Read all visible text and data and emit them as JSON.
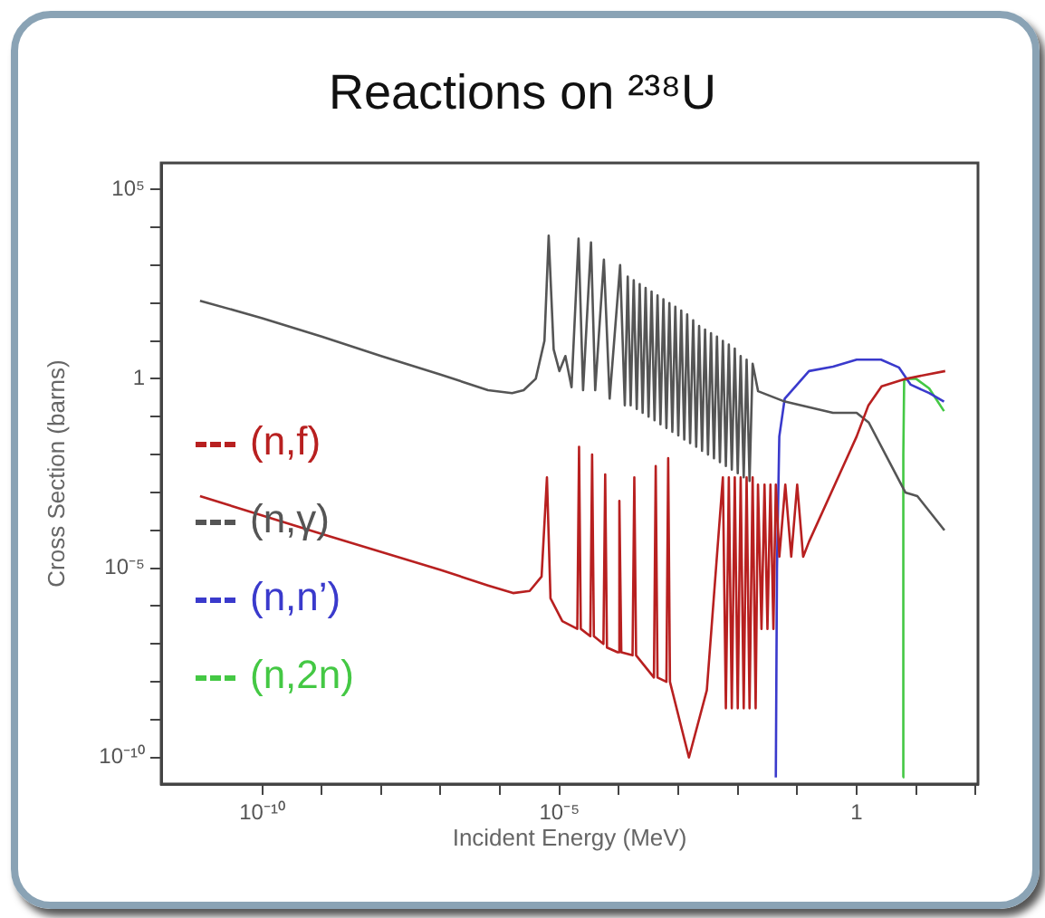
{
  "chart_data": {
    "type": "line",
    "title": "Reactions on ²³⁸U",
    "xlabel": "Incident Energy (MeV)",
    "ylabel": "Cross Section (barns)",
    "log": "xy",
    "grid": false,
    "legend": "left",
    "marker": "none",
    "line_style": "solid",
    "xlim": [
      2e-12,
      110
    ],
    "ylim": [
      2e-11,
      500000
    ],
    "xticks": [
      {
        "value": 1e-10,
        "label": "10⁻¹⁰"
      },
      {
        "value": 1e-09,
        "label": null
      },
      {
        "value": 1e-08,
        "label": null
      },
      {
        "value": 1e-07,
        "label": null
      },
      {
        "value": 1e-06,
        "label": null
      },
      {
        "value": 1e-05,
        "label": "10⁻⁵"
      },
      {
        "value": 0.0001,
        "label": null
      },
      {
        "value": 0.001,
        "label": null
      },
      {
        "value": 0.01,
        "label": null
      },
      {
        "value": 0.1,
        "label": null
      },
      1,
      {
        "value": 10,
        "label": null
      },
      {
        "value": 100,
        "label": null
      }
    ],
    "yticks": [
      {
        "value": 1e-10,
        "label": "10⁻¹⁰"
      },
      {
        "value": 1e-09,
        "label": null
      },
      {
        "value": 1e-08,
        "label": null
      },
      {
        "value": 1e-07,
        "label": null
      },
      {
        "value": 1e-06,
        "label": null
      },
      {
        "value": 1e-05,
        "label": "10⁻⁵"
      },
      {
        "value": 0.0001,
        "label": null
      },
      {
        "value": 0.001,
        "label": null
      },
      {
        "value": 0.01,
        "label": null
      },
      {
        "value": 0.1,
        "label": null
      },
      1,
      {
        "value": 10,
        "label": null
      },
      {
        "value": 100,
        "label": null
      },
      {
        "value": 1000,
        "label": null
      },
      {
        "value": 10000,
        "label": null
      },
      {
        "value": 100000,
        "label": "10⁵"
      }
    ],
    "series": [
      {
        "name": "(n,f)",
        "color": "#b82020",
        "x": [
          9e-12,
          1e-09,
          1e-07,
          6.3e-07,
          1.66e-06,
          3.16e-06,
          5.01e-06,
          6.17e-06,
          7.08e-06,
          1.12e-05,
          2e-05,
          2.14e-05,
          2.29e-05,
          3.31e-05,
          3.55e-05,
          3.8e-05,
          5.5e-05,
          5.89e-05,
          6.31e-05,
          9.55e-05,
          0.000102,
          0.00011,
          0.00017,
          0.000182,
          0.000195,
          0.000389,
          0.000417,
          0.000447,
          0.000631,
          0.000676,
          0.000724,
          0.00151,
          0.00302,
          0.00562,
          0.00631,
          0.00708,
          0.00794,
          0.00891,
          0.01,
          0.0112,
          0.0126,
          0.0141,
          0.0158,
          0.0178,
          0.02,
          0.0219,
          0.0251,
          0.0282,
          0.0316,
          0.0355,
          0.0398,
          0.0437,
          0.0501,
          0.0631,
          0.0794,
          0.1,
          0.126,
          0.158,
          1,
          1.58,
          2.63,
          6.61,
          30.9
        ],
        "values": [
          0.0008,
          8e-05,
          9e-06,
          3.5e-06,
          2.2e-06,
          2.5e-06,
          6e-06,
          0.0025,
          1.6e-06,
          4e-07,
          2.5e-07,
          0.016,
          2.5e-07,
          1.6e-07,
          0.01,
          1.6e-07,
          1e-07,
          0.003,
          8e-08,
          6e-08,
          0.0006,
          6e-08,
          5e-08,
          0.0025,
          5e-08,
          1.3e-08,
          0.005,
          1.3e-08,
          1e-08,
          0.008,
          1e-08,
          1e-10,
          6e-09,
          0.0025,
          2e-09,
          0.0025,
          2e-09,
          0.0025,
          2e-09,
          0.0025,
          2e-09,
          0.0025,
          2e-09,
          0.0025,
          2e-09,
          0.0016,
          2.5e-07,
          0.0016,
          2.5e-07,
          0.0016,
          2.5e-07,
          0.0016,
          2e-05,
          0.0016,
          2e-05,
          0.0016,
          2e-05,
          5e-05,
          0.03,
          0.2,
          0.63,
          1,
          1.6
        ]
      },
      {
        "name": "(n,γ)",
        "color": "#555555",
        "x": [
          9e-12,
          1e-10,
          1e-09,
          1e-08,
          1e-07,
          6.3e-07,
          1.6e-06,
          2.5e-06,
          4e-06,
          5.6e-06,
          6.6e-06,
          8e-06,
          1e-05,
          1.26e-05,
          1.6e-05,
          2.1e-05,
          2.5e-05,
          3.4e-05,
          4e-05,
          5.6e-05,
          7e-05,
          0.000105,
          0.000126,
          0.000141,
          0.000158,
          0.000178,
          0.0002,
          0.000224,
          0.000251,
          0.000282,
          0.000316,
          0.000355,
          0.000398,
          0.000447,
          0.000501,
          0.000562,
          0.000631,
          0.000708,
          0.000794,
          0.000891,
          0.001,
          0.00112,
          0.00126,
          0.00141,
          0.00158,
          0.00178,
          0.002,
          0.00224,
          0.00251,
          0.00282,
          0.00316,
          0.00355,
          0.00398,
          0.00447,
          0.00501,
          0.00562,
          0.00631,
          0.00708,
          0.00794,
          0.00891,
          0.01,
          0.0112,
          0.0126,
          0.0141,
          0.0158,
          0.0178,
          0.022,
          0.062,
          0.4,
          1,
          1.6,
          6.6,
          10.5,
          30
        ],
        "values": [
          115,
          40,
          13,
          4,
          1.3,
          0.5,
          0.42,
          0.5,
          1,
          10,
          6000,
          6,
          1.6,
          4,
          0.6,
          5000,
          0.5,
          4000,
          0.5,
          1400,
          0.3,
          1000,
          0.2,
          500,
          0.2,
          400,
          0.16,
          316,
          0.126,
          250,
          0.1,
          200,
          0.08,
          160,
          0.063,
          126,
          0.05,
          100,
          0.04,
          80,
          0.032,
          63,
          0.025,
          50,
          0.02,
          35,
          0.016,
          25,
          0.0126,
          20,
          0.01,
          16,
          0.008,
          13,
          0.0063,
          10,
          0.005,
          8,
          0.004,
          6.3,
          0.0032,
          4,
          0.0025,
          3.2,
          0.002,
          2.5,
          0.47,
          0.25,
          0.126,
          0.126,
          0.07,
          0.001,
          0.0008,
          0.0001
        ]
      },
      {
        "name": "(n,n’)",
        "color": "#3a3acc",
        "x": [
          0.0437,
          0.0457,
          0.05,
          0.0617,
          0.158,
          0.4,
          1,
          2.57,
          5.13,
          8.13,
          16.6,
          29.5
        ],
        "values": [
          3e-11,
          1e-05,
          0.03,
          0.3,
          1.6,
          2.1,
          3.2,
          3.2,
          2,
          0.7,
          0.42,
          0.25
        ]
      },
      {
        "name": "(n,2n)",
        "color": "#44c844",
        "x": [
          6.03,
          6.1,
          6.3,
          7.1,
          10,
          16.6,
          29.5
        ],
        "values": [
          3e-11,
          0.01,
          0.9,
          1,
          1,
          0.56,
          0.14
        ]
      }
    ]
  }
}
